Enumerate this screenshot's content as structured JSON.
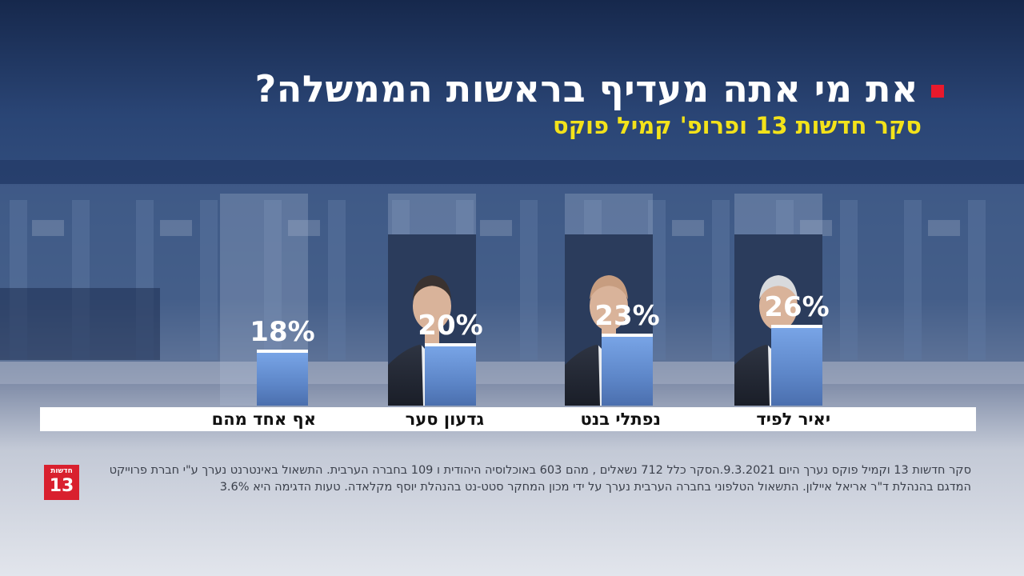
{
  "title": "את מי אתה מעדיף בראשות הממשלה?",
  "subtitle": "סקר חדשות 13 ופרופ' קמיל פוקס",
  "colors": {
    "title": "#ffffff",
    "subtitle": "#f3e21a",
    "bar": "#6e9ade",
    "bar_top": "#ffffff",
    "accent": "#e8192c",
    "logo": "#d9202e"
  },
  "chart_data": {
    "type": "bar",
    "direction": "rtl",
    "categories": [
      "יאיר לפיד",
      "נפתלי בנט",
      "גדעון סער",
      "אף אחד מהם"
    ],
    "values": [
      26,
      23,
      20,
      18
    ],
    "value_labels": [
      "26%",
      "23%",
      "20%",
      "18%"
    ],
    "unit": "%",
    "title": "את מי אתה מעדיף בראשות הממשלה?",
    "subtitle": "סקר חדשות 13 ופרופ' קמיל פוקס",
    "ylim": [
      0,
      40
    ],
    "grid": false,
    "legend": "none"
  },
  "photos": [
    "portrait-lapid",
    "portrait-bennett",
    "portrait-saar",
    ""
  ],
  "footnote": "סקר חדשות 13 וקמיל פוקס נערך היום 9.3.2021.הסקר כלל 712 נשאלים , מהם 603 באוכלוסיה היהודית ו 109 בחברה הערבית. התשאול באינטרנט נערך ע\"י חברת פרוייקט המדגם בהנהלת ד\"ר אריאל איילון. התשאול הטלפוני בחברה הערבית נערך על ידי מכון המחקר סטט-נט בהנהלת יוסף מקלאדה. טעות הדגימה היא 3.6%",
  "logo": {
    "top": "חדשות",
    "number": "13"
  }
}
